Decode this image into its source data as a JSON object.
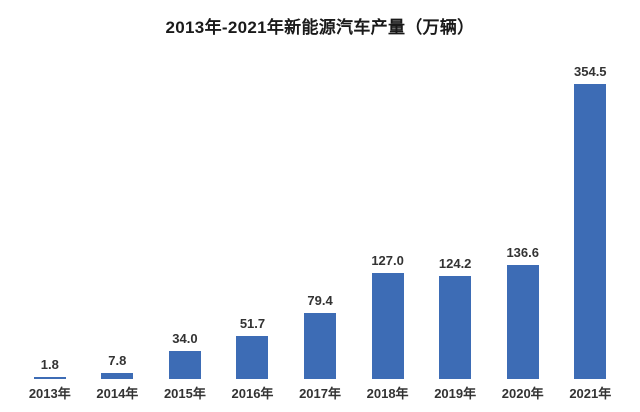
{
  "chart_data": {
    "type": "bar",
    "title": "2013年-2021年新能源汽车产量（万辆）",
    "categories": [
      "2013年",
      "2014年",
      "2015年",
      "2016年",
      "2017年",
      "2018年",
      "2019年",
      "2020年",
      "2021年"
    ],
    "values": [
      1.8,
      7.8,
      34.0,
      51.7,
      79.4,
      127.0,
      124.2,
      136.6,
      354.5
    ],
    "xlabel": "",
    "ylabel": "",
    "ylim": [
      0,
      360
    ],
    "grid": false,
    "legend": false,
    "data_labels": true,
    "bar_color": "#3d6cb5",
    "label_color": "#333333",
    "title_color": "#1a1a1a",
    "background_color": "#ffffff"
  }
}
